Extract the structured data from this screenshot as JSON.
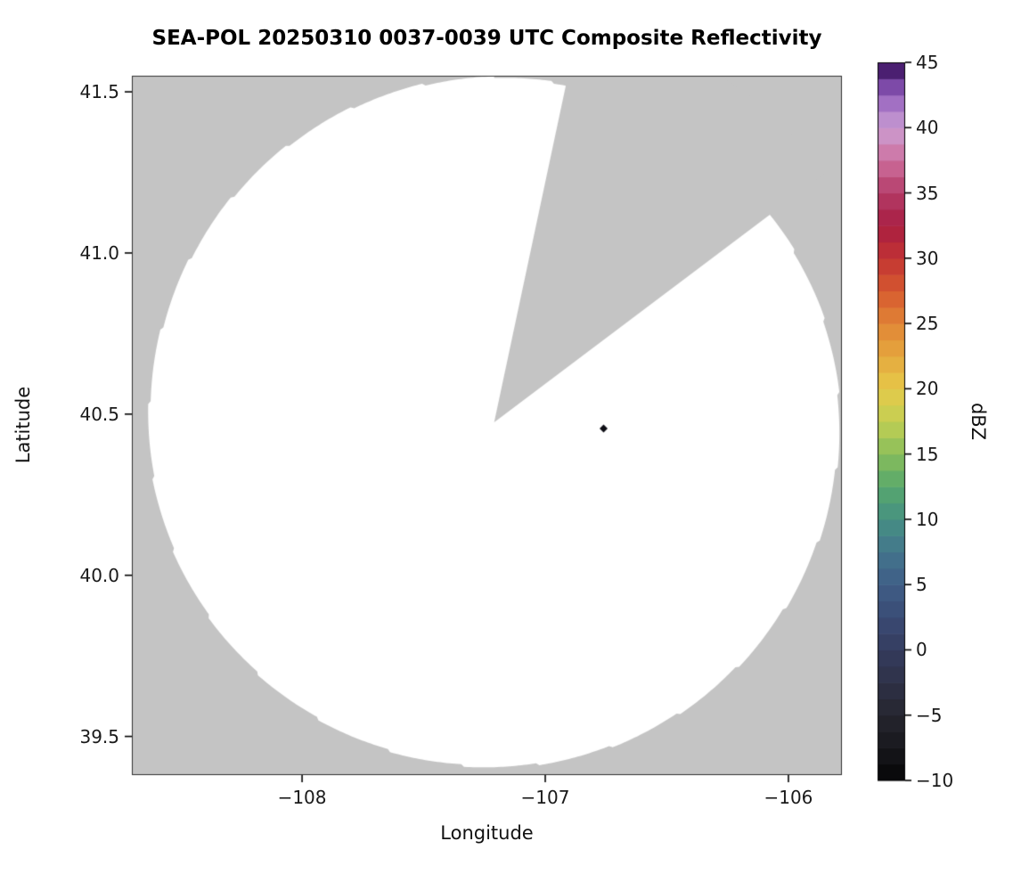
{
  "figure": {
    "background": "#ffffff"
  },
  "chart_data": {
    "type": "heatmap",
    "subtype": "radar-composite-reflectivity-map",
    "title": "SEA-POL 20250310 0037-0039 UTC Composite Reflectivity",
    "xlabel": "Longitude",
    "ylabel": "Latitude",
    "xlim": [
      -108.7,
      -105.78
    ],
    "ylim": [
      39.38,
      41.55
    ],
    "grid": false,
    "xticks": [
      {
        "value": -108,
        "label": "−108"
      },
      {
        "value": -107,
        "label": "−107"
      },
      {
        "value": -106,
        "label": "−106"
      }
    ],
    "yticks": [
      {
        "value": 39.5,
        "label": "39.5"
      },
      {
        "value": 40.0,
        "label": "40.0"
      },
      {
        "value": 40.5,
        "label": "40.5"
      },
      {
        "value": 41.0,
        "label": "41.0"
      },
      {
        "value": 41.5,
        "label": "41.5"
      }
    ],
    "radar": {
      "center_lon": -107.21,
      "center_lat": 40.475,
      "radius_lat_deg": 1.07,
      "radius_lon_deg": 1.42,
      "blanked_sector_azimuth_deg": [
        12,
        53
      ],
      "coverage_fill": "#ffffff",
      "mask_fill": "#c4c4c4"
    },
    "echoes": [
      {
        "lon": -106.76,
        "lat": 40.455,
        "dbz": -8,
        "color": "#0e0e15"
      }
    ],
    "colorbar": {
      "label": "dBZ",
      "min": -10,
      "max": 45,
      "segment_step": 1.25,
      "ticks": [
        {
          "value": -10,
          "label": "−10"
        },
        {
          "value": -5,
          "label": "−5"
        },
        {
          "value": 0,
          "label": "0"
        },
        {
          "value": 5,
          "label": "5"
        },
        {
          "value": 10,
          "label": "10"
        },
        {
          "value": 15,
          "label": "15"
        },
        {
          "value": 20,
          "label": "20"
        },
        {
          "value": 25,
          "label": "25"
        },
        {
          "value": 30,
          "label": "30"
        },
        {
          "value": 35,
          "label": "35"
        },
        {
          "value": 40,
          "label": "40"
        },
        {
          "value": 45,
          "label": "45"
        }
      ],
      "stops": [
        {
          "v": -10,
          "c": "#060607"
        },
        {
          "v": -7.5,
          "c": "#17171c"
        },
        {
          "v": -5,
          "c": "#26262f"
        },
        {
          "v": -2.5,
          "c": "#2e3147"
        },
        {
          "v": 0,
          "c": "#343c5e"
        },
        {
          "v": 2.5,
          "c": "#3a4b74"
        },
        {
          "v": 5,
          "c": "#3f5d86"
        },
        {
          "v": 7.5,
          "c": "#43758c"
        },
        {
          "v": 10,
          "c": "#469083"
        },
        {
          "v": 12.5,
          "c": "#57a86c"
        },
        {
          "v": 15,
          "c": "#88bd5b"
        },
        {
          "v": 17.5,
          "c": "#c2cf53"
        },
        {
          "v": 20,
          "c": "#e6c949"
        },
        {
          "v": 22.5,
          "c": "#e5a83e"
        },
        {
          "v": 25,
          "c": "#e18536"
        },
        {
          "v": 27.5,
          "c": "#d6592f"
        },
        {
          "v": 30,
          "c": "#c23433"
        },
        {
          "v": 32.5,
          "c": "#a81d41"
        },
        {
          "v": 35,
          "c": "#b43b67"
        },
        {
          "v": 37.5,
          "c": "#cd6f9d"
        },
        {
          "v": 40,
          "c": "#cb9fd4"
        },
        {
          "v": 42.5,
          "c": "#9460bd"
        },
        {
          "v": 44,
          "c": "#5c2a8a"
        },
        {
          "v": 45,
          "c": "#2e0d47"
        }
      ]
    }
  }
}
